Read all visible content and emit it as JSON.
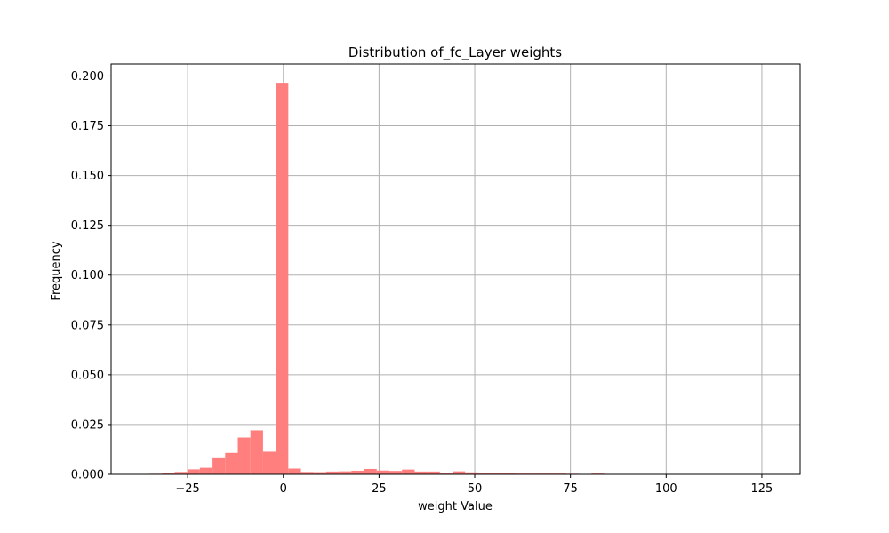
{
  "chart_data": {
    "type": "bar",
    "title": "Distribution of_fc_Layer weights",
    "xlabel": "weight Value",
    "ylabel": "Frequency",
    "xlim": [
      -45,
      135
    ],
    "ylim": [
      0,
      0.206
    ],
    "xticks": [
      -25,
      0,
      25,
      50,
      75,
      100,
      125
    ],
    "yticks": [
      0.0,
      0.025,
      0.05,
      0.075,
      0.1,
      0.125,
      0.15,
      0.175,
      0.2
    ],
    "ytick_labels": [
      "0.000",
      "0.025",
      "0.050",
      "0.075",
      "0.100",
      "0.125",
      "0.150",
      "0.175",
      "0.200"
    ],
    "xtick_labels": [
      "−25",
      "0",
      "25",
      "50",
      "75",
      "100",
      "125"
    ],
    "grid": true,
    "bar_color": "#ff7f7f",
    "bin_start": -35,
    "bin_width": 3.3,
    "values": [
      0.0003,
      0.0005,
      0.0012,
      0.0025,
      0.0033,
      0.0081,
      0.0108,
      0.0185,
      0.0221,
      0.0114,
      0.1966,
      0.0029,
      0.0012,
      0.0011,
      0.0014,
      0.0015,
      0.0018,
      0.0027,
      0.0019,
      0.0017,
      0.0024,
      0.0014,
      0.0014,
      0.0008,
      0.0015,
      0.001,
      0.0006,
      0.0006,
      0.0005,
      0.0004,
      0.0004,
      0.0004,
      0.0004,
      0.0003,
      0.0001,
      0.0004,
      0.0002,
      0.0001,
      0.0001,
      0.0001,
      0.0001,
      0.0001,
      0.0,
      0.0,
      0.0001,
      0.0,
      0.0,
      0.0,
      0.0,
      0.0
    ]
  }
}
